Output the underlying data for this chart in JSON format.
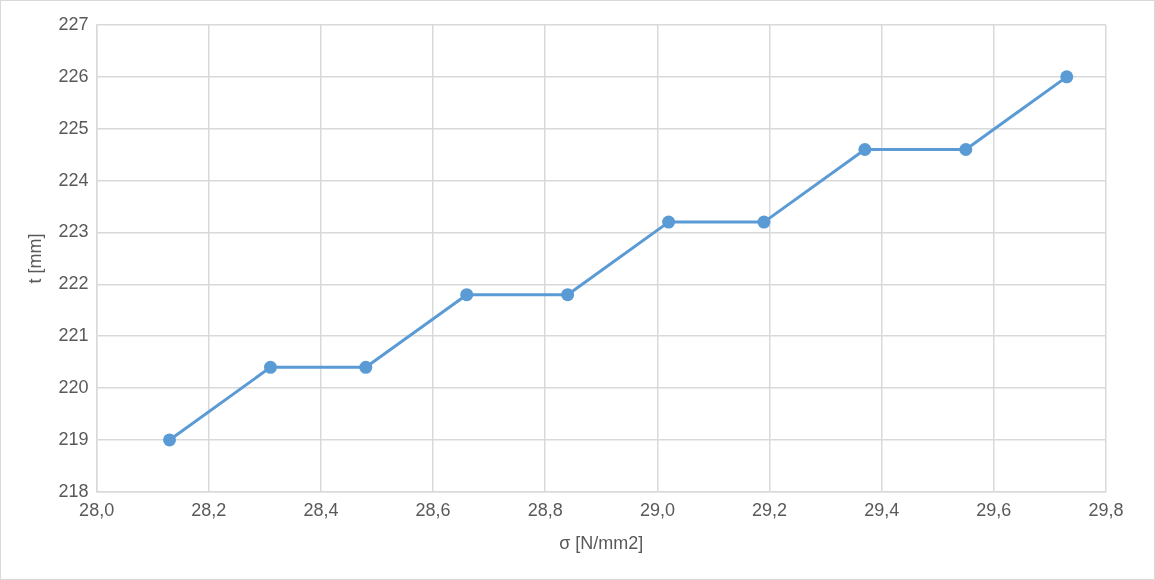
{
  "chart_data": {
    "type": "line",
    "xlabel": "σ [N/mm2]",
    "ylabel": "t [mm]",
    "x": [
      28.13,
      28.31,
      28.48,
      28.66,
      28.84,
      29.02,
      29.19,
      29.37,
      29.55,
      29.73
    ],
    "series": [
      {
        "color": "#5b9bd5",
        "values": [
          219.0,
          220.4,
          220.4,
          221.8,
          221.8,
          223.2,
          223.2,
          224.6,
          224.6,
          226.0
        ]
      }
    ],
    "xlim": [
      28.0,
      29.8
    ],
    "xticks": [
      {
        "value": 28.0,
        "label": "28,0"
      },
      {
        "value": 28.2,
        "label": "28,2"
      },
      {
        "value": 28.4,
        "label": "28,4"
      },
      {
        "value": 28.6,
        "label": "28,6"
      },
      {
        "value": 28.8,
        "label": "28,8"
      },
      {
        "value": 29.0,
        "label": "29,0"
      },
      {
        "value": 29.2,
        "label": "29,2"
      },
      {
        "value": 29.4,
        "label": "29,4"
      },
      {
        "value": 29.6,
        "label": "29,6"
      },
      {
        "value": 29.8,
        "label": "29,8"
      }
    ],
    "ylim": [
      218,
      227
    ],
    "yticks": [
      218,
      219,
      220,
      221,
      222,
      223,
      224,
      225,
      226,
      227
    ],
    "grid": true,
    "legend": false,
    "marker": "circle",
    "line_style": "solid"
  }
}
